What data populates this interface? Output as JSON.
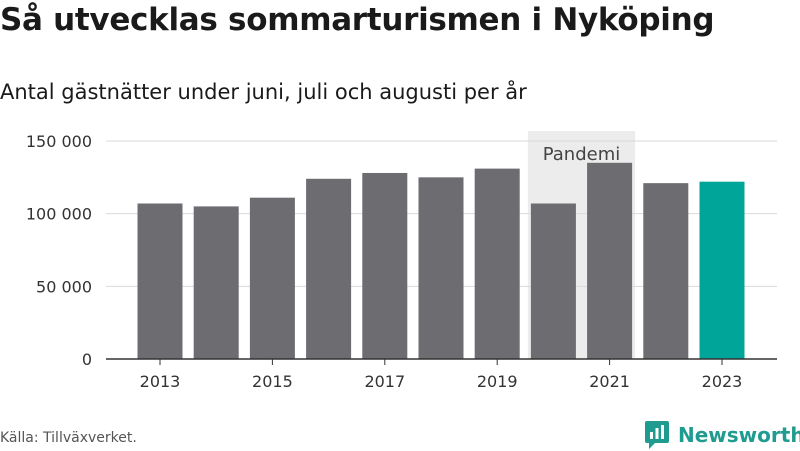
{
  "header": {
    "title": "Så utvecklas sommarturismen i Nyköping",
    "subtitle": "Antal gästnätter under juni, juli och augusti per år"
  },
  "footer": {
    "source": "Källa: Tillväxverket.",
    "logo_text": "Newsworthy"
  },
  "colors": {
    "bar": "#6d6c71",
    "highlight": "#00a59a",
    "shade": "#ececec",
    "grid": "#d9d9d9",
    "logo": "#1f9c8f"
  },
  "chart_data": {
    "type": "bar",
    "title": "Så utvecklas sommarturismen i Nyköping",
    "subtitle": "Antal gästnätter under juni, juli och augusti per år",
    "categories": [
      "2013",
      "2014",
      "2015",
      "2016",
      "2017",
      "2018",
      "2019",
      "2020",
      "2021",
      "2022",
      "2023"
    ],
    "values": [
      107000,
      105000,
      111000,
      124000,
      128000,
      125000,
      131000,
      107000,
      135000,
      121000,
      122000
    ],
    "highlight_category": "2023",
    "ylim": [
      0,
      150000
    ],
    "yticks": [
      0,
      50000,
      100000,
      150000
    ],
    "ytick_labels": [
      "0",
      "50 000",
      "100 000",
      "150 000"
    ],
    "xtick_labels": [
      "2013",
      "2015",
      "2017",
      "2019",
      "2021",
      "2023"
    ],
    "grid": true,
    "annotation": {
      "label": "Pandemi",
      "from_category": "2020",
      "to_category": "2021"
    }
  }
}
